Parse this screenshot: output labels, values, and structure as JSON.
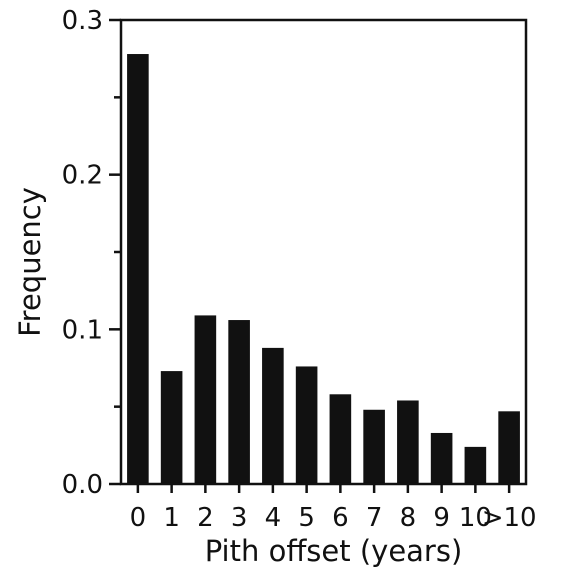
{
  "chart_data": {
    "type": "bar",
    "categories": [
      "0",
      "1",
      "2",
      "3",
      "4",
      "5",
      "6",
      "7",
      "8",
      "9",
      "10",
      ">10"
    ],
    "values": [
      0.278,
      0.073,
      0.109,
      0.106,
      0.088,
      0.076,
      0.058,
      0.048,
      0.054,
      0.033,
      0.024,
      0.047
    ],
    "xlabel": "Pith offset (years)",
    "ylabel": "Frequency",
    "ylim": [
      0,
      0.3
    ],
    "yticks_major": [
      0.0,
      0.1,
      0.2,
      0.3
    ],
    "ytick_labels": [
      "0.0",
      "0.1",
      "0.2",
      "0.3"
    ],
    "yticks_minor": [
      0.05,
      0.15,
      0.25
    ],
    "grid": false,
    "bar_color": "#111111",
    "axis_color": "#111111"
  }
}
